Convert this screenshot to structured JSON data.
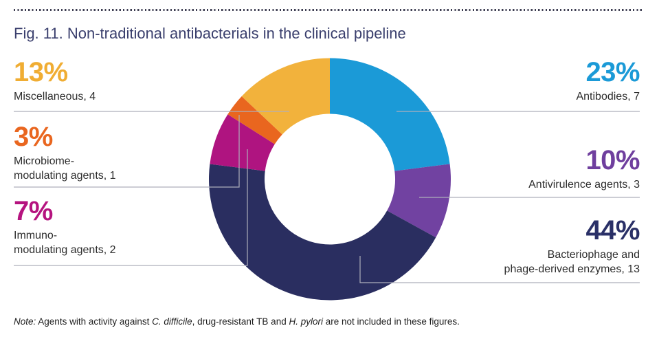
{
  "title": "Fig. 11. Non-traditional antibacterials in the clinical pipeline",
  "chart_data": {
    "type": "pie",
    "subtype": "donut",
    "title": "Fig. 11. Non-traditional antibacterials in the clinical pipeline",
    "start_angle_deg": 0,
    "direction": "clockwise",
    "legend_position": "callouts-both-sides",
    "segments": [
      {
        "label": "Antibodies",
        "count": 7,
        "percent": 23,
        "color": "#1b9ad7"
      },
      {
        "label": "Antivirulence agents",
        "count": 3,
        "percent": 10,
        "color": "#7142a1"
      },
      {
        "label": "Bacteriophage and phage-derived enzymes",
        "count": 13,
        "percent": 44,
        "color": "#2a2e60"
      },
      {
        "label": "Immuno-modulating agents",
        "count": 2,
        "percent": 7,
        "color": "#af1480"
      },
      {
        "label": "Microbiome-modulating agents",
        "count": 1,
        "percent": 3,
        "color": "#e9661f"
      },
      {
        "label": "Miscellaneous",
        "count": 4,
        "percent": 13,
        "color": "#f2b23c"
      }
    ]
  },
  "callouts": {
    "left": [
      {
        "percent": "13%",
        "lines": [
          "Miscellaneous, 4"
        ],
        "color": "#f0ad33"
      },
      {
        "percent": "3%",
        "lines": [
          "Microbiome-",
          "modulating agents, 1"
        ],
        "color": "#e9661f"
      },
      {
        "percent": "7%",
        "lines": [
          "Immuno-",
          "modulating agents, 2"
        ],
        "color": "#b5137f"
      }
    ],
    "right": [
      {
        "percent": "23%",
        "lines": [
          "Antibodies, 7"
        ],
        "color": "#1b9ad7"
      },
      {
        "percent": "10%",
        "lines": [
          "Antivirulence agents, 3"
        ],
        "color": "#6f3f9e"
      },
      {
        "percent": "44%",
        "lines": [
          "Bacteriophage and",
          "phage-derived enzymes, 13"
        ],
        "color": "#2a3067"
      }
    ]
  },
  "note": {
    "label": "Note:",
    "part1": " Agents with activity against ",
    "italic1": "C. difficile",
    "part2": ", drug-resistant TB and ",
    "italic2": "H. pylori",
    "part3": " are not included in these figures."
  }
}
